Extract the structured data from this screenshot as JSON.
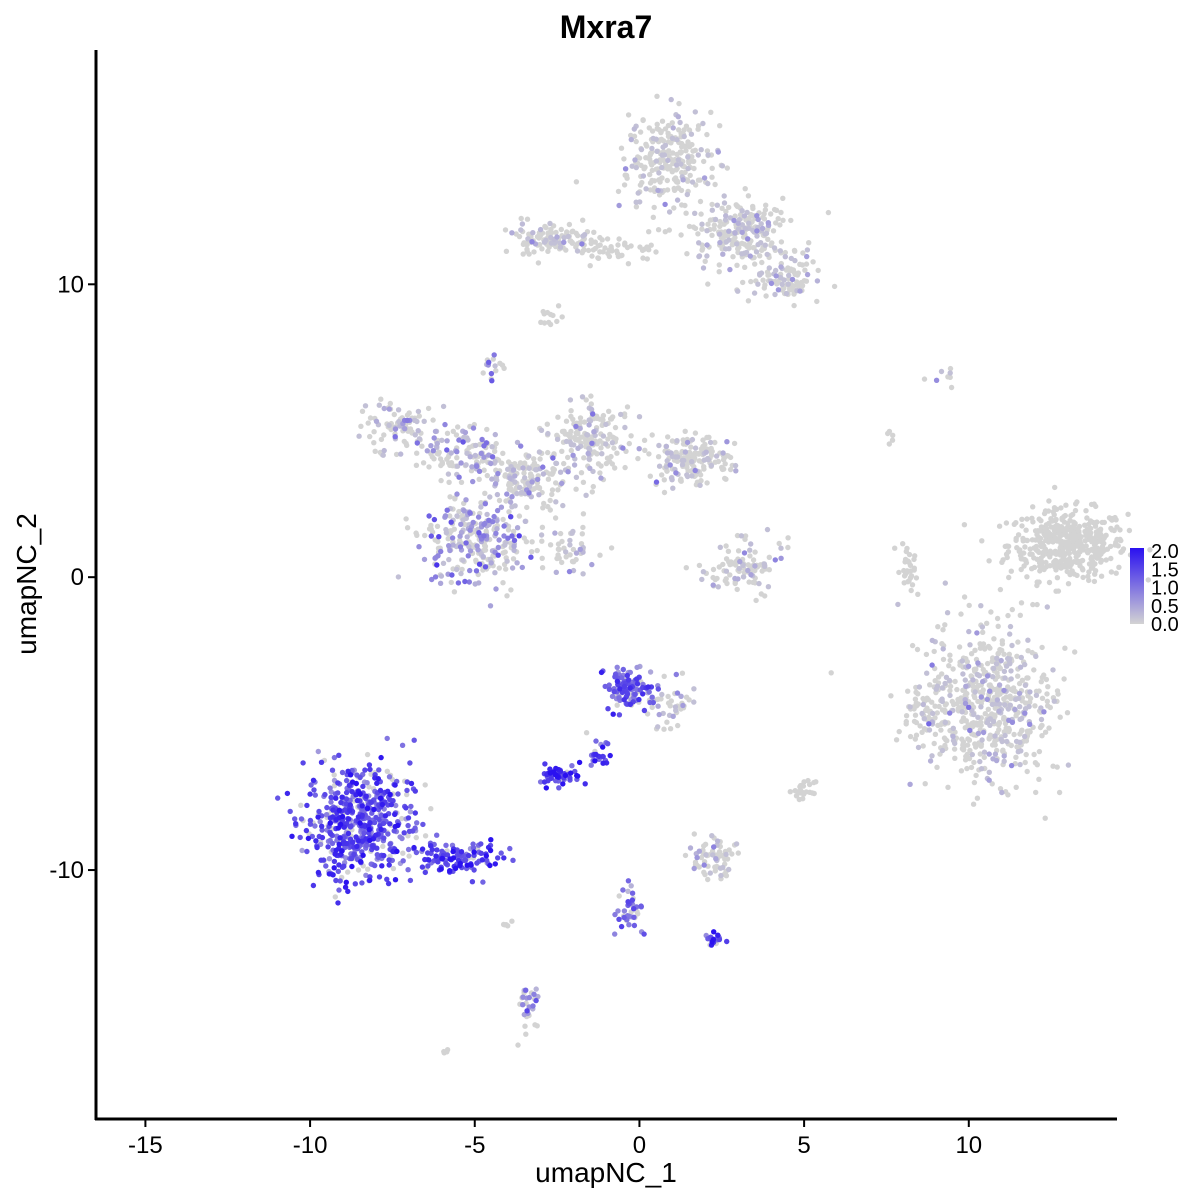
{
  "chart_data": {
    "type": "scatter",
    "title": "Mxra7",
    "xlabel": "umapNC_1",
    "ylabel": "umapNC_2",
    "xlim": [
      -16.5,
      14.5
    ],
    "ylim": [
      -18.5,
      18.0
    ],
    "x_ticks": [
      {
        "value": -15,
        "label": "-15"
      },
      {
        "value": -10,
        "label": "-10"
      },
      {
        "value": -5,
        "label": "-5"
      },
      {
        "value": 0,
        "label": "0"
      },
      {
        "value": 5,
        "label": "5"
      },
      {
        "value": 10,
        "label": "10"
      }
    ],
    "y_ticks": [
      {
        "value": 10,
        "label": "10"
      },
      {
        "value": 0,
        "label": "0"
      },
      {
        "value": -10,
        "label": "-10"
      }
    ],
    "grid": false,
    "legend": {
      "placement": "right",
      "min": 0.0,
      "max": 2.0,
      "breaks": [
        {
          "value": 2.0,
          "label": "2.0"
        },
        {
          "value": 1.5,
          "label": "1.5"
        },
        {
          "value": 1.0,
          "label": "1.0"
        },
        {
          "value": 0.5,
          "label": "0.5"
        },
        {
          "value": 0.0,
          "label": "0.0"
        }
      ],
      "low_color": "#d3d3d3",
      "high_color": "#2a11f0"
    },
    "clusters": [
      {
        "cx": 13.0,
        "cy": 1.1,
        "sx": 1.2,
        "sy": 0.8,
        "n": 450,
        "expr": 0.0
      },
      {
        "cx": 0.8,
        "cy": 14.2,
        "sx": 0.9,
        "sy": 1.1,
        "n": 260,
        "expr": 0.03
      },
      {
        "cx": 3.1,
        "cy": 11.7,
        "sx": 1.0,
        "sy": 0.8,
        "n": 230,
        "expr": 0.05
      },
      {
        "cx": 4.5,
        "cy": 10.2,
        "sx": 0.7,
        "sy": 0.5,
        "n": 90,
        "expr": 0.08
      },
      {
        "cx": -2.7,
        "cy": 11.5,
        "sx": 0.8,
        "sy": 0.4,
        "n": 110,
        "expr": 0.02
      },
      {
        "cx": -0.7,
        "cy": 11.2,
        "sx": 0.9,
        "sy": 0.25,
        "n": 50,
        "expr": 0.0
      },
      {
        "cx": -7.4,
        "cy": 5.1,
        "sx": 0.8,
        "sy": 0.6,
        "n": 90,
        "expr": 0.2
      },
      {
        "cx": -5.3,
        "cy": 4.1,
        "sx": 0.9,
        "sy": 0.7,
        "n": 130,
        "expr": 0.45
      },
      {
        "cx": -3.4,
        "cy": 3.3,
        "sx": 0.8,
        "sy": 0.7,
        "n": 160,
        "expr": 0.2
      },
      {
        "cx": -1.5,
        "cy": 4.8,
        "sx": 0.8,
        "sy": 0.9,
        "n": 170,
        "expr": 0.08
      },
      {
        "cx": 1.5,
        "cy": 4.0,
        "sx": 0.8,
        "sy": 0.6,
        "n": 170,
        "expr": 0.05
      },
      {
        "cx": -5.0,
        "cy": 1.3,
        "sx": 1.0,
        "sy": 1.0,
        "n": 270,
        "expr": 0.55
      },
      {
        "cx": -2.2,
        "cy": 1.0,
        "sx": 0.7,
        "sy": 0.6,
        "n": 50,
        "expr": 0.35
      },
      {
        "cx": -4.4,
        "cy": 7.2,
        "sx": 0.2,
        "sy": 0.3,
        "n": 15,
        "expr": 0.4
      },
      {
        "cx": -2.8,
        "cy": 9.0,
        "sx": 0.25,
        "sy": 0.3,
        "n": 12,
        "expr": 0.0
      },
      {
        "cx": 3.1,
        "cy": 0.4,
        "sx": 0.8,
        "sy": 0.6,
        "n": 100,
        "expr": 0.03
      },
      {
        "cx": 8.1,
        "cy": 0.3,
        "sx": 0.2,
        "sy": 0.6,
        "n": 30,
        "expr": 0.0
      },
      {
        "cx": 10.5,
        "cy": -4.3,
        "sx": 1.3,
        "sy": 1.8,
        "n": 620,
        "expr": 0.03
      },
      {
        "cx": 8.5,
        "cy": -4.5,
        "sx": 0.3,
        "sy": 0.5,
        "n": 30,
        "expr": 0.0
      },
      {
        "cx": -8.5,
        "cy": -8.4,
        "sx": 1.1,
        "sy": 1.3,
        "n": 560,
        "expr": 1.3
      },
      {
        "cx": -5.5,
        "cy": -9.6,
        "sx": 0.9,
        "sy": 0.35,
        "n": 120,
        "expr": 1.5
      },
      {
        "cx": -0.3,
        "cy": -3.8,
        "sx": 0.5,
        "sy": 0.5,
        "n": 120,
        "expr": 1.2
      },
      {
        "cx": 1.0,
        "cy": -4.5,
        "sx": 0.5,
        "sy": 0.6,
        "n": 40,
        "expr": 0.3
      },
      {
        "cx": -1.3,
        "cy": -5.9,
        "sx": 0.3,
        "sy": 0.5,
        "n": 25,
        "expr": 1.4
      },
      {
        "cx": -2.4,
        "cy": -6.8,
        "sx": 0.35,
        "sy": 0.25,
        "n": 50,
        "expr": 1.6
      },
      {
        "cx": 2.2,
        "cy": -9.5,
        "sx": 0.5,
        "sy": 0.4,
        "n": 70,
        "expr": 0.08
      },
      {
        "cx": 5.0,
        "cy": -7.3,
        "sx": 0.2,
        "sy": 0.2,
        "n": 25,
        "expr": 0.0
      },
      {
        "cx": -0.3,
        "cy": -11.3,
        "sx": 0.25,
        "sy": 0.6,
        "n": 40,
        "expr": 1.1
      },
      {
        "cx": 2.3,
        "cy": -12.4,
        "sx": 0.2,
        "sy": 0.15,
        "n": 18,
        "expr": 1.7
      },
      {
        "cx": -3.4,
        "cy": -14.7,
        "sx": 0.2,
        "sy": 0.6,
        "n": 30,
        "expr": 0.8
      },
      {
        "cx": -4.0,
        "cy": -11.8,
        "sx": 0.1,
        "sy": 0.2,
        "n": 5,
        "expr": 0.0
      },
      {
        "cx": -5.9,
        "cy": -16.2,
        "sx": 0.1,
        "sy": 0.1,
        "n": 4,
        "expr": 0.0
      },
      {
        "cx": 9.3,
        "cy": 6.8,
        "sx": 0.5,
        "sy": 0.2,
        "n": 8,
        "expr": 0.3
      },
      {
        "cx": 7.6,
        "cy": 4.8,
        "sx": 0.1,
        "sy": 0.2,
        "n": 5,
        "expr": 0.0
      }
    ]
  }
}
